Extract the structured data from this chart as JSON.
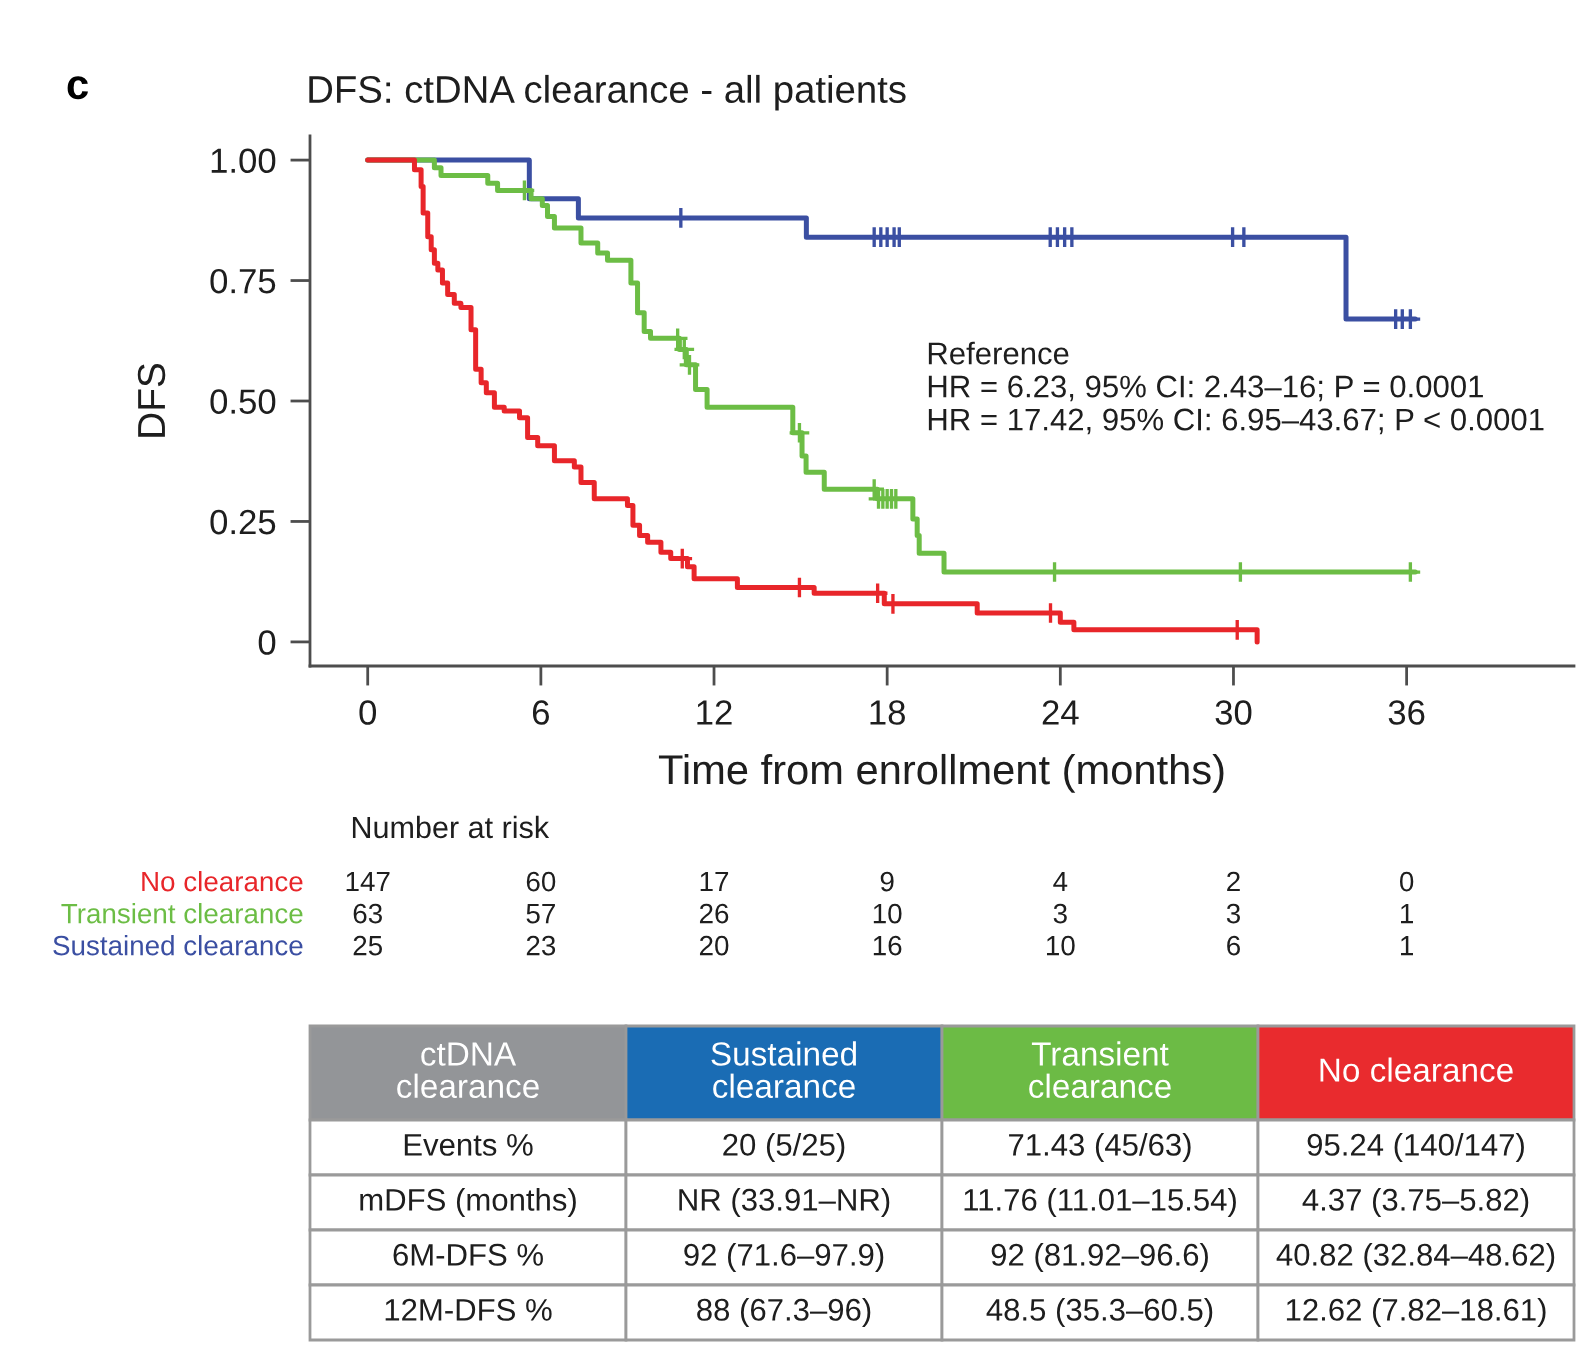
{
  "chart_data": [
    {
      "type": "step",
      "title": "DFS: ctDNA clearance - all patients",
      "xlabel": "Time from enrollment (months)",
      "ylabel": "DFS",
      "xlim": [
        -2,
        41.8
      ],
      "ylim": [
        -0.05,
        1.05
      ],
      "xticks": [
        0,
        6,
        12,
        18,
        24,
        30,
        36
      ],
      "yticks": [
        0,
        0.25,
        {
          "value": 0.5,
          "label": "0.50"
        },
        0.75,
        {
          "value": 1,
          "label": "1.00"
        }
      ],
      "annotations": [
        "c",
        "Reference\nHR = 6.23, 95% CI: 2.43–16; P = 0.0001\nHR = 17.42, 95% CI: 6.95–43.67; P < 0.0001"
      ],
      "series": [
        {
          "type": "step",
          "color": "#3b4fa2",
          "x": [
            0,
            5.6,
            7.3,
            15.2,
            33.9,
            36.3
          ],
          "values": [
            1,
            0.92,
            0.88,
            0.84,
            0.67,
            0.67
          ]
        },
        {
          "type": "scatter",
          "marker": "cross",
          "color": "#3b4fa2",
          "x": [
            10.85,
            17.55,
            17.78,
            18.0,
            18.24,
            18.42,
            23.65,
            23.9,
            24.15,
            24.4,
            29.97,
            30.36,
            35.62,
            35.85,
            36.13
          ],
          "values": [
            0.88,
            0.84,
            0.84,
            0.84,
            0.84,
            0.84,
            0.84,
            0.84,
            0.84,
            0.84,
            0.84,
            0.84,
            0.67,
            0.67,
            0.67
          ]
        },
        {
          "type": "step",
          "color": "#6cbd45",
          "x": [
            0,
            2.31,
            2.54,
            4.16,
            4.5,
            5.66,
            6.05,
            6.23,
            6.47,
            7.39,
            7.97,
            8.31,
            9.12,
            9.35,
            9.58,
            9.8,
            10.8,
            11.04,
            11.36,
            11.76,
            14.73,
            15.05,
            15.19,
            15.82,
            17.66,
            18.89,
            19.04,
            19.11,
            19.97,
            36.3
          ],
          "values": [
            1,
            0.984,
            0.968,
            0.952,
            0.937,
            0.92,
            0.906,
            0.883,
            0.859,
            0.828,
            0.807,
            0.792,
            0.745,
            0.683,
            0.644,
            0.63,
            0.607,
            0.575,
            0.524,
            0.487,
            0.434,
            0.386,
            0.352,
            0.317,
            0.297,
            0.255,
            0.221,
            0.184,
            0.145,
            0.145
          ]
        },
        {
          "type": "scatter",
          "marker": "cross",
          "color": "#6cbd45",
          "x": [
            5.43,
            10.74,
            10.97,
            11.15,
            14.96,
            17.55,
            17.7,
            17.85,
            18.0,
            18.15,
            18.3,
            23.8,
            30.24,
            36.13
          ],
          "values": [
            0.937,
            0.63,
            0.607,
            0.575,
            0.434,
            0.317,
            0.297,
            0.297,
            0.297,
            0.297,
            0.297,
            0.145,
            0.145,
            0.145
          ]
        },
        {
          "type": "step",
          "color": "#e8262a",
          "x": [
            0,
            1.62,
            1.85,
            1.92,
            2.08,
            2.2,
            2.31,
            2.43,
            2.59,
            2.77,
            3.0,
            3.23,
            3.58,
            3.74,
            3.93,
            4.11,
            4.39,
            4.73,
            5.26,
            5.54,
            5.89,
            6.47,
            7.16,
            7.39,
            7.85,
            9.0,
            9.19,
            9.42,
            9.7,
            10.16,
            10.5,
            11.08,
            11.31,
            12.81,
            15.47,
            17.9,
            21.12,
            24.0,
            24.47,
            30.82
          ],
          "values": [
            1,
            0.98,
            0.945,
            0.89,
            0.841,
            0.814,
            0.786,
            0.772,
            0.745,
            0.721,
            0.703,
            0.694,
            0.648,
            0.566,
            0.538,
            0.517,
            0.487,
            0.479,
            0.465,
            0.424,
            0.407,
            0.376,
            0.363,
            0.331,
            0.297,
            0.283,
            0.242,
            0.221,
            0.207,
            0.186,
            0.173,
            0.156,
            0.131,
            0.113,
            0.101,
            0.079,
            0.06,
            0.041,
            0.025,
            0
          ]
        },
        {
          "type": "scatter",
          "marker": "cross",
          "color": "#e8262a",
          "x": [
            10.9,
            14.96,
            17.67,
            18.2,
            23.66,
            30.13
          ],
          "values": [
            0.173,
            0.113,
            0.101,
            0.079,
            0.06,
            0.025
          ]
        }
      ]
    },
    {
      "type": "other",
      "title": "Number at risk",
      "categories": [
        null,
        null,
        null,
        null,
        null,
        null,
        null
      ],
      "y_categories": [
        "No clearance",
        "Transient clearance",
        "Sustained clearance"
      ],
      "colors": [
        "#e8262a",
        "#6cbd45",
        "#3b4fa2"
      ],
      "cell_labels": [
        [
          "147",
          "60",
          "17",
          "9",
          "4",
          "2",
          "0"
        ],
        [
          "63",
          "57",
          "26",
          "10",
          "3",
          "3",
          "1"
        ],
        [
          "25",
          "23",
          "20",
          "16",
          "10",
          "6",
          "1"
        ]
      ]
    },
    {
      "type": "other",
      "categories": [
        "ctDNA\nclearance",
        "Sustained\nclearance",
        "Transient\nclearance",
        "No clearance"
      ],
      "colors": [
        "#939598",
        "#1a6cb4",
        "#6cbb45",
        "#e92b2e"
      ],
      "cell_labels": [
        [
          "Events %",
          "20 (5/25)",
          "71.43 (45/63)",
          "95.24 (140/147)"
        ],
        [
          "mDFS (months)",
          "NR (33.91–NR)",
          "11.76 (11.01–15.54)",
          "4.37 (3.75–5.82)"
        ],
        [
          "6M-DFS %",
          "92 (71.6–97.9)",
          "92 (81.92–96.6)",
          "40.82 (32.84–48.62)"
        ],
        [
          "12M-DFS %",
          "88 (67.3–96)",
          "48.5 (35.3–60.5)",
          "12.62 (7.82–18.61)"
        ]
      ]
    }
  ]
}
